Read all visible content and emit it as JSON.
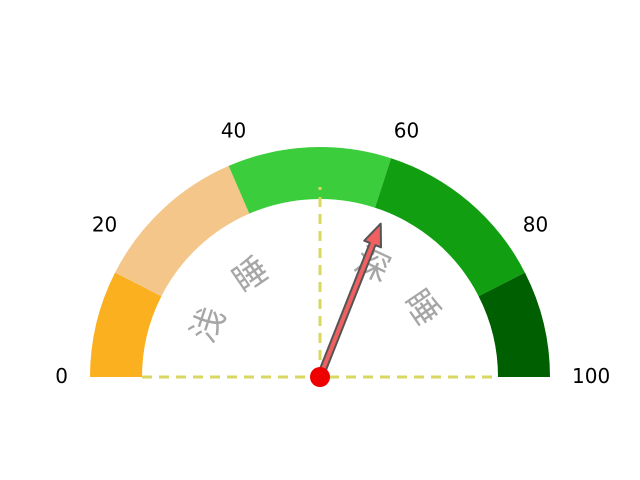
{
  "chart_data": {
    "type": "gauge",
    "min": 0,
    "max": 100,
    "value": 62,
    "ticks": [
      {
        "value": 0,
        "label": "0"
      },
      {
        "value": 20,
        "label": "20"
      },
      {
        "value": 40,
        "label": "40"
      },
      {
        "value": 60,
        "label": "60"
      },
      {
        "value": 80,
        "label": "80"
      },
      {
        "value": 100,
        "label": "100"
      }
    ],
    "bands": [
      {
        "from": 0,
        "to": 15,
        "color": "#fbb020"
      },
      {
        "from": 15,
        "to": 37,
        "color": "#f4c68a"
      },
      {
        "from": 37,
        "to": 60,
        "color": "#3ccd3c"
      },
      {
        "from": 60,
        "to": 85,
        "color": "#119e11"
      },
      {
        "from": 85,
        "to": 100,
        "color": "#005f00"
      }
    ],
    "zone_labels": [
      {
        "text": "浅 睡",
        "from": 0,
        "to": 50
      },
      {
        "text": "深 睡",
        "from": 50,
        "to": 100
      }
    ],
    "needle_color": "#f06060",
    "needle_outline_color": "#555555",
    "pivot_color": "#ee0000",
    "guide_line_color": "#d8d860"
  }
}
